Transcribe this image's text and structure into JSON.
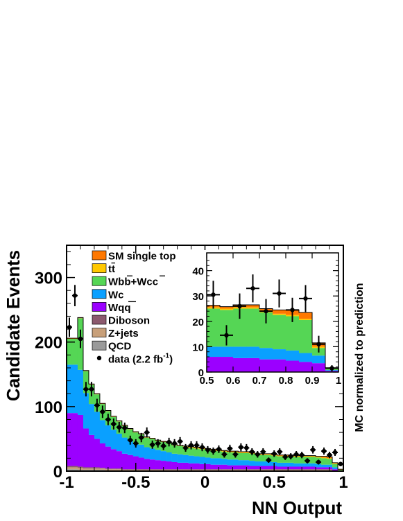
{
  "chart_data": {
    "type": "bar",
    "stacked": true,
    "histogram": true,
    "xlabel": "NN Output",
    "ylabel": "Candidate Events",
    "right_label": "MC normalized to prediction",
    "xlim": [
      -1,
      1
    ],
    "ylim": [
      0,
      350
    ],
    "x_ticks": [
      "-1",
      "-0.5",
      "0",
      "0.5",
      "1"
    ],
    "y_ticks": [
      "0",
      "100",
      "200",
      "300"
    ],
    "x_tick_values": [
      -1,
      -0.5,
      0,
      0.5,
      1
    ],
    "y_tick_values": [
      0,
      100,
      200,
      300
    ],
    "x": [
      -0.98,
      -0.94,
      -0.9,
      -0.86,
      -0.82,
      -0.78,
      -0.74,
      -0.7,
      -0.66,
      -0.62,
      -0.58,
      -0.54,
      -0.5,
      -0.46,
      -0.42,
      -0.38,
      -0.34,
      -0.3,
      -0.26,
      -0.22,
      -0.18,
      -0.14,
      -0.1,
      -0.06,
      -0.02,
      0.02,
      0.06,
      0.1,
      0.14,
      0.18,
      0.22,
      0.26,
      0.3,
      0.34,
      0.38,
      0.42,
      0.46,
      0.5,
      0.54,
      0.58,
      0.62,
      0.66,
      0.7,
      0.74,
      0.78,
      0.82,
      0.86,
      0.9,
      0.94,
      0.98
    ],
    "series": [
      {
        "name": "QCD",
        "color": "#9a9a9a",
        "values": [
          3,
          3,
          2,
          2,
          2,
          2,
          2,
          1,
          1,
          1,
          1,
          1,
          1,
          1,
          1,
          1,
          1,
          1,
          1,
          1,
          1,
          1,
          1,
          1,
          1,
          1,
          1,
          1,
          1,
          1,
          1,
          1,
          1,
          1,
          1,
          1,
          1,
          1,
          1,
          1,
          1,
          1,
          1,
          1,
          1,
          1,
          1,
          1,
          1,
          0
        ]
      },
      {
        "name": "Z+jets",
        "color": "#c8a07a",
        "values": [
          3,
          3,
          3,
          2,
          2,
          2,
          2,
          2,
          2,
          2,
          1,
          1,
          1,
          1,
          1,
          1,
          1,
          1,
          1,
          1,
          1,
          1,
          1,
          1,
          1,
          1,
          1,
          1,
          1,
          1,
          1,
          1,
          1,
          1,
          1,
          1,
          1,
          1,
          1,
          1,
          1,
          1,
          1,
          1,
          1,
          1,
          1,
          1,
          0,
          0
        ]
      },
      {
        "name": "Diboson",
        "color": "#8c5a6e",
        "values": [
          2,
          2,
          2,
          2,
          2,
          2,
          1,
          1,
          1,
          1,
          1,
          1,
          1,
          1,
          1,
          1,
          1,
          1,
          1,
          1,
          1,
          1,
          1,
          1,
          1,
          1,
          1,
          1,
          1,
          1,
          1,
          1,
          1,
          1,
          1,
          1,
          1,
          1,
          1,
          1,
          1,
          1,
          1,
          1,
          1,
          1,
          1,
          1,
          0,
          0
        ]
      },
      {
        "name": "Wqq",
        "color": "#9b00ff",
        "values": [
          82,
          82,
          80,
          60,
          50,
          44,
          38,
          34,
          30,
          27,
          24,
          22,
          20,
          18,
          16,
          15,
          14,
          13,
          12,
          11,
          10,
          10,
          9,
          9,
          8,
          8,
          7,
          7,
          7,
          6,
          6,
          6,
          6,
          5,
          5,
          5,
          5,
          5,
          4,
          4,
          4,
          4,
          4,
          4,
          4,
          3,
          3,
          3,
          2,
          0
        ]
      },
      {
        "name": "Wc",
        "color": "#0aa0ff",
        "values": [
          75,
          75,
          70,
          55,
          48,
          42,
          36,
          33,
          30,
          27,
          25,
          23,
          21,
          20,
          18,
          17,
          16,
          15,
          14,
          13,
          13,
          12,
          12,
          11,
          11,
          10,
          10,
          10,
          9,
          9,
          9,
          8,
          8,
          8,
          7,
          7,
          7,
          6,
          6,
          6,
          6,
          5,
          5,
          5,
          5,
          5,
          4,
          4,
          3,
          0
        ]
      },
      {
        "name": "Wbb+Wcc",
        "color": "#55d655",
        "values": [
          40,
          40,
          80,
          34,
          30,
          27,
          25,
          22,
          20,
          19,
          18,
          17,
          16,
          16,
          15,
          15,
          14,
          14,
          14,
          13,
          13,
          13,
          12,
          12,
          12,
          12,
          12,
          11,
          11,
          11,
          11,
          11,
          11,
          11,
          10,
          10,
          10,
          10,
          10,
          10,
          10,
          10,
          10,
          10,
          10,
          10,
          10,
          9,
          5,
          2
        ]
      },
      {
        "name": "tt",
        "color": "#ffc800",
        "values": [
          0,
          0,
          0,
          0,
          0,
          0,
          0,
          0,
          0,
          0,
          0,
          0,
          0,
          0,
          0,
          0,
          0,
          0,
          0,
          0,
          0,
          0,
          1,
          1,
          1,
          1,
          1,
          1,
          1,
          1,
          1,
          1,
          1,
          1,
          1,
          1,
          1,
          1,
          1,
          1,
          1,
          1,
          1,
          1,
          1,
          1,
          1,
          1,
          1,
          0
        ]
      },
      {
        "name": "SM single top",
        "color": "#ff7800",
        "values": [
          1,
          1,
          1,
          1,
          1,
          1,
          1,
          1,
          1,
          1,
          1,
          1,
          1,
          1,
          1,
          1,
          1,
          1,
          1,
          1,
          1,
          1,
          1,
          1,
          1,
          1,
          1,
          1,
          1,
          1,
          1,
          1,
          1,
          1,
          1,
          1,
          1,
          1,
          1,
          1,
          1,
          1,
          1,
          1,
          1,
          1,
          2,
          2,
          1,
          1
        ]
      }
    ],
    "data_points": {
      "name": "data (2.2 fb",
      "name_sup": "-1",
      "name_close": ")",
      "x": [
        -0.98,
        -0.94,
        -0.9,
        -0.86,
        -0.82,
        -0.78,
        -0.74,
        -0.7,
        -0.66,
        -0.62,
        -0.58,
        -0.54,
        -0.5,
        -0.46,
        -0.42,
        -0.38,
        -0.34,
        -0.3,
        -0.26,
        -0.22,
        -0.18,
        -0.14,
        -0.1,
        -0.06,
        -0.02,
        0.02,
        0.06,
        0.1,
        0.14,
        0.18,
        0.22,
        0.26,
        0.3,
        0.34,
        0.38,
        0.42,
        0.46,
        0.5,
        0.54,
        0.58,
        0.62,
        0.66,
        0.7,
        0.74,
        0.78,
        0.82,
        0.86,
        0.9,
        0.94,
        0.98
      ],
      "y": [
        223,
        272,
        205,
        127,
        127,
        102,
        92,
        80,
        73,
        68,
        67,
        48,
        43,
        52,
        60,
        41,
        43,
        39,
        45,
        43,
        46,
        36,
        40,
        40,
        37,
        33,
        31,
        34,
        26,
        35,
        26,
        37,
        36,
        30,
        26,
        30,
        17,
        27,
        30,
        22,
        23,
        26,
        25,
        16,
        33,
        14,
        31,
        25,
        29,
        11
      ]
    },
    "inset": {
      "xlim": [
        0.5,
        1
      ],
      "ylim": [
        0,
        47
      ],
      "x_ticks": [
        "0.5",
        "0.6",
        "0.7",
        "0.8",
        "0.9",
        "1"
      ],
      "y_ticks": [
        "0",
        "10",
        "20",
        "30",
        "40"
      ],
      "x_tick_values": [
        0.5,
        0.6,
        0.7,
        0.8,
        0.9,
        1.0
      ],
      "y_tick_values": [
        0,
        10,
        20,
        30,
        40
      ],
      "bin_edges": [
        0.5,
        0.55,
        0.6,
        0.65,
        0.7,
        0.75,
        0.8,
        0.85,
        0.9,
        0.95,
        1.0
      ],
      "series": [
        {
          "name": "Wqq",
          "color": "#9b00ff",
          "values": [
            6,
            6,
            5.5,
            5.5,
            5,
            5,
            4.5,
            4,
            3.5,
            0.5
          ]
        },
        {
          "name": "Wc",
          "color": "#0aa0ff",
          "values": [
            4,
            4,
            4.5,
            4.5,
            4.5,
            4,
            4,
            3.5,
            3,
            0.3
          ]
        },
        {
          "name": "Wbb+Wcc",
          "color": "#55d655",
          "values": [
            15,
            14.5,
            15,
            15,
            14,
            13.5,
            13.5,
            13,
            3,
            0.4
          ]
        },
        {
          "name": "tt",
          "color": "#ffc800",
          "values": [
            0.5,
            0.5,
            0.5,
            0.5,
            0.5,
            0.5,
            0.5,
            0.5,
            0.5,
            0.2
          ]
        },
        {
          "name": "SM single top",
          "color": "#ff7800",
          "values": [
            0.8,
            0.8,
            1,
            1,
            1,
            1.5,
            2,
            2.5,
            1.5,
            0.3
          ]
        }
      ],
      "data_points": {
        "x": [
          0.525,
          0.575,
          0.625,
          0.675,
          0.725,
          0.775,
          0.825,
          0.875,
          0.925,
          0.975
        ],
        "y": [
          30.5,
          14.5,
          26,
          33,
          24,
          31,
          24.5,
          29,
          11,
          1.5
        ],
        "err": [
          5.5,
          4,
          5,
          5.5,
          4.8,
          5.5,
          4.8,
          5.3,
          3.3,
          1.2
        ]
      }
    },
    "legend": {
      "placement": "top-left",
      "entries": [
        {
          "label": "SM single top",
          "color": "#ff7800"
        },
        {
          "label": "tt",
          "color": "#ffc800",
          "overline": true
        },
        {
          "label": "Wbb+Wcc",
          "color": "#55d655",
          "overline_spans": [
            2,
            3,
            6,
            7
          ]
        },
        {
          "label": "Wc",
          "color": "#0aa0ff"
        },
        {
          "label": "Wqq",
          "color": "#9b00ff",
          "overline": true
        },
        {
          "label": "Diboson",
          "color": "#8c5a6e"
        },
        {
          "label": "Z+jets",
          "color": "#c8a07a"
        },
        {
          "label": "QCD",
          "color": "#9a9a9a"
        }
      ]
    }
  }
}
